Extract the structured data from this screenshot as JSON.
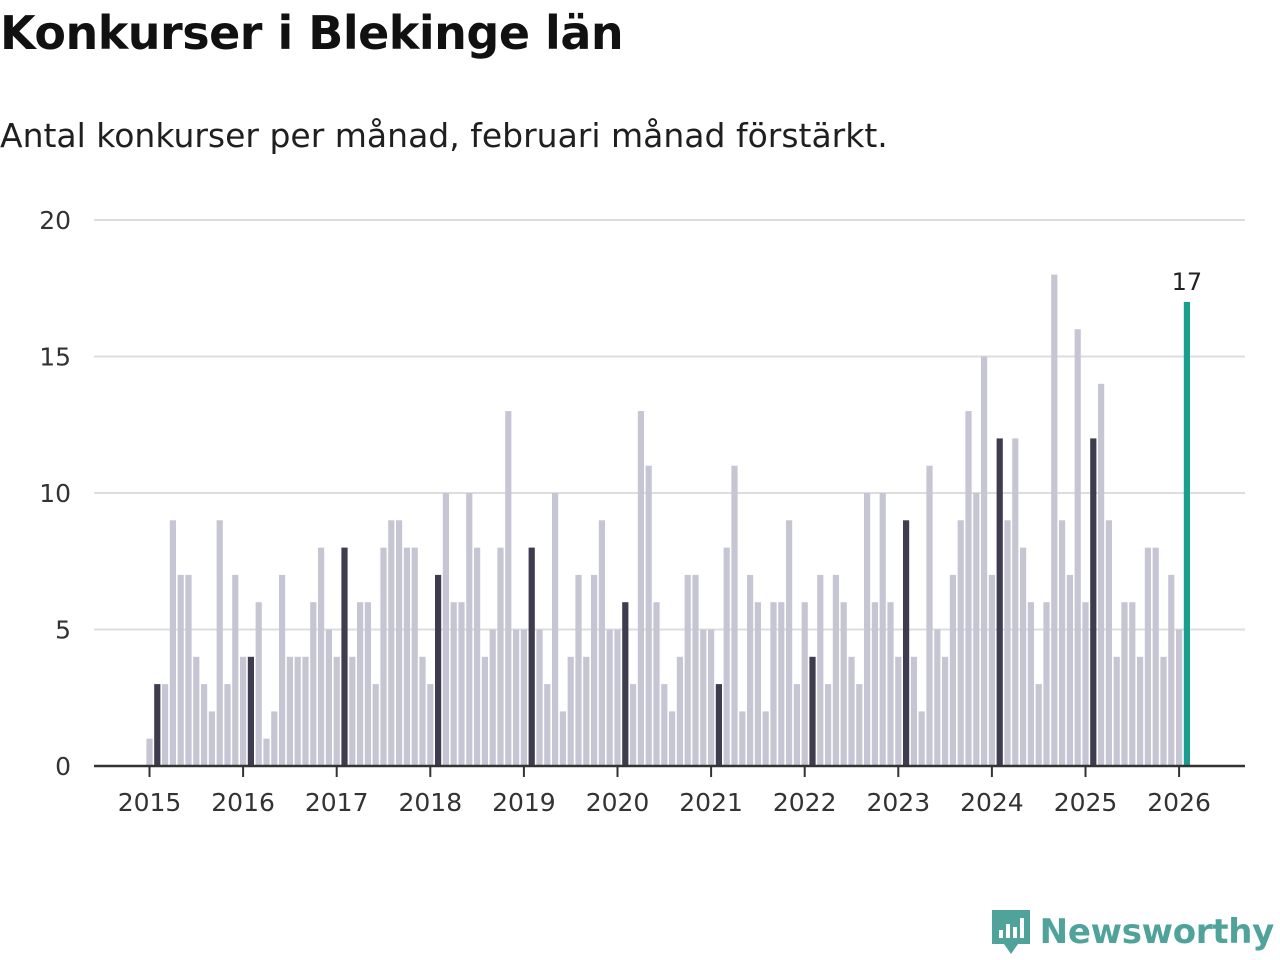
{
  "header": {
    "title": "Konkurser i Blekinge län",
    "subtitle": "Antal konkurser per månad, februari månad förstärkt."
  },
  "brand": {
    "name": "Newsworthy"
  },
  "colors": {
    "bar": "#c6c5d3",
    "highlight": "#3e3c4e",
    "latest": "#1a9e8f",
    "grid": "#dddddd",
    "axis": "#333333",
    "brand": "#4fa39b"
  },
  "chart_data": {
    "type": "bar",
    "title": "Konkurser i Blekinge län",
    "subtitle": "Antal konkurser per månad, februari månad förstärkt.",
    "xlabel": "",
    "ylabel": "",
    "ylim": [
      0,
      20
    ],
    "yticks": [
      0,
      5,
      10,
      15,
      20
    ],
    "grid": true,
    "start": "2015-01",
    "end": "2026-02",
    "year_ticks": [
      "2015",
      "2016",
      "2017",
      "2018",
      "2019",
      "2020",
      "2021",
      "2022",
      "2023",
      "2024",
      "2025",
      "2026"
    ],
    "highlight_month": "february",
    "latest_label": "17",
    "series": [
      {
        "name": "Antal konkurser",
        "values": [
          1,
          3,
          3,
          9,
          7,
          7,
          4,
          3,
          2,
          9,
          3,
          7,
          4,
          4,
          6,
          1,
          2,
          7,
          4,
          4,
          4,
          6,
          8,
          5,
          4,
          8,
          4,
          6,
          6,
          3,
          8,
          9,
          9,
          8,
          8,
          4,
          3,
          7,
          10,
          6,
          6,
          10,
          8,
          4,
          5,
          8,
          13,
          5,
          5,
          8,
          5,
          3,
          10,
          2,
          4,
          7,
          4,
          7,
          9,
          5,
          5,
          6,
          3,
          13,
          11,
          6,
          3,
          2,
          4,
          7,
          7,
          5,
          5,
          3,
          8,
          11,
          2,
          7,
          6,
          2,
          6,
          6,
          9,
          3,
          6,
          4,
          7,
          3,
          7,
          6,
          4,
          3,
          10,
          6,
          10,
          6,
          4,
          9,
          4,
          2,
          11,
          5,
          4,
          7,
          9,
          13,
          10,
          15,
          7,
          12,
          9,
          12,
          8,
          6,
          3,
          6,
          18,
          9,
          7,
          16,
          6,
          12,
          14,
          9,
          4,
          6,
          6,
          4,
          8,
          8,
          4,
          7,
          5,
          17
        ]
      }
    ]
  }
}
